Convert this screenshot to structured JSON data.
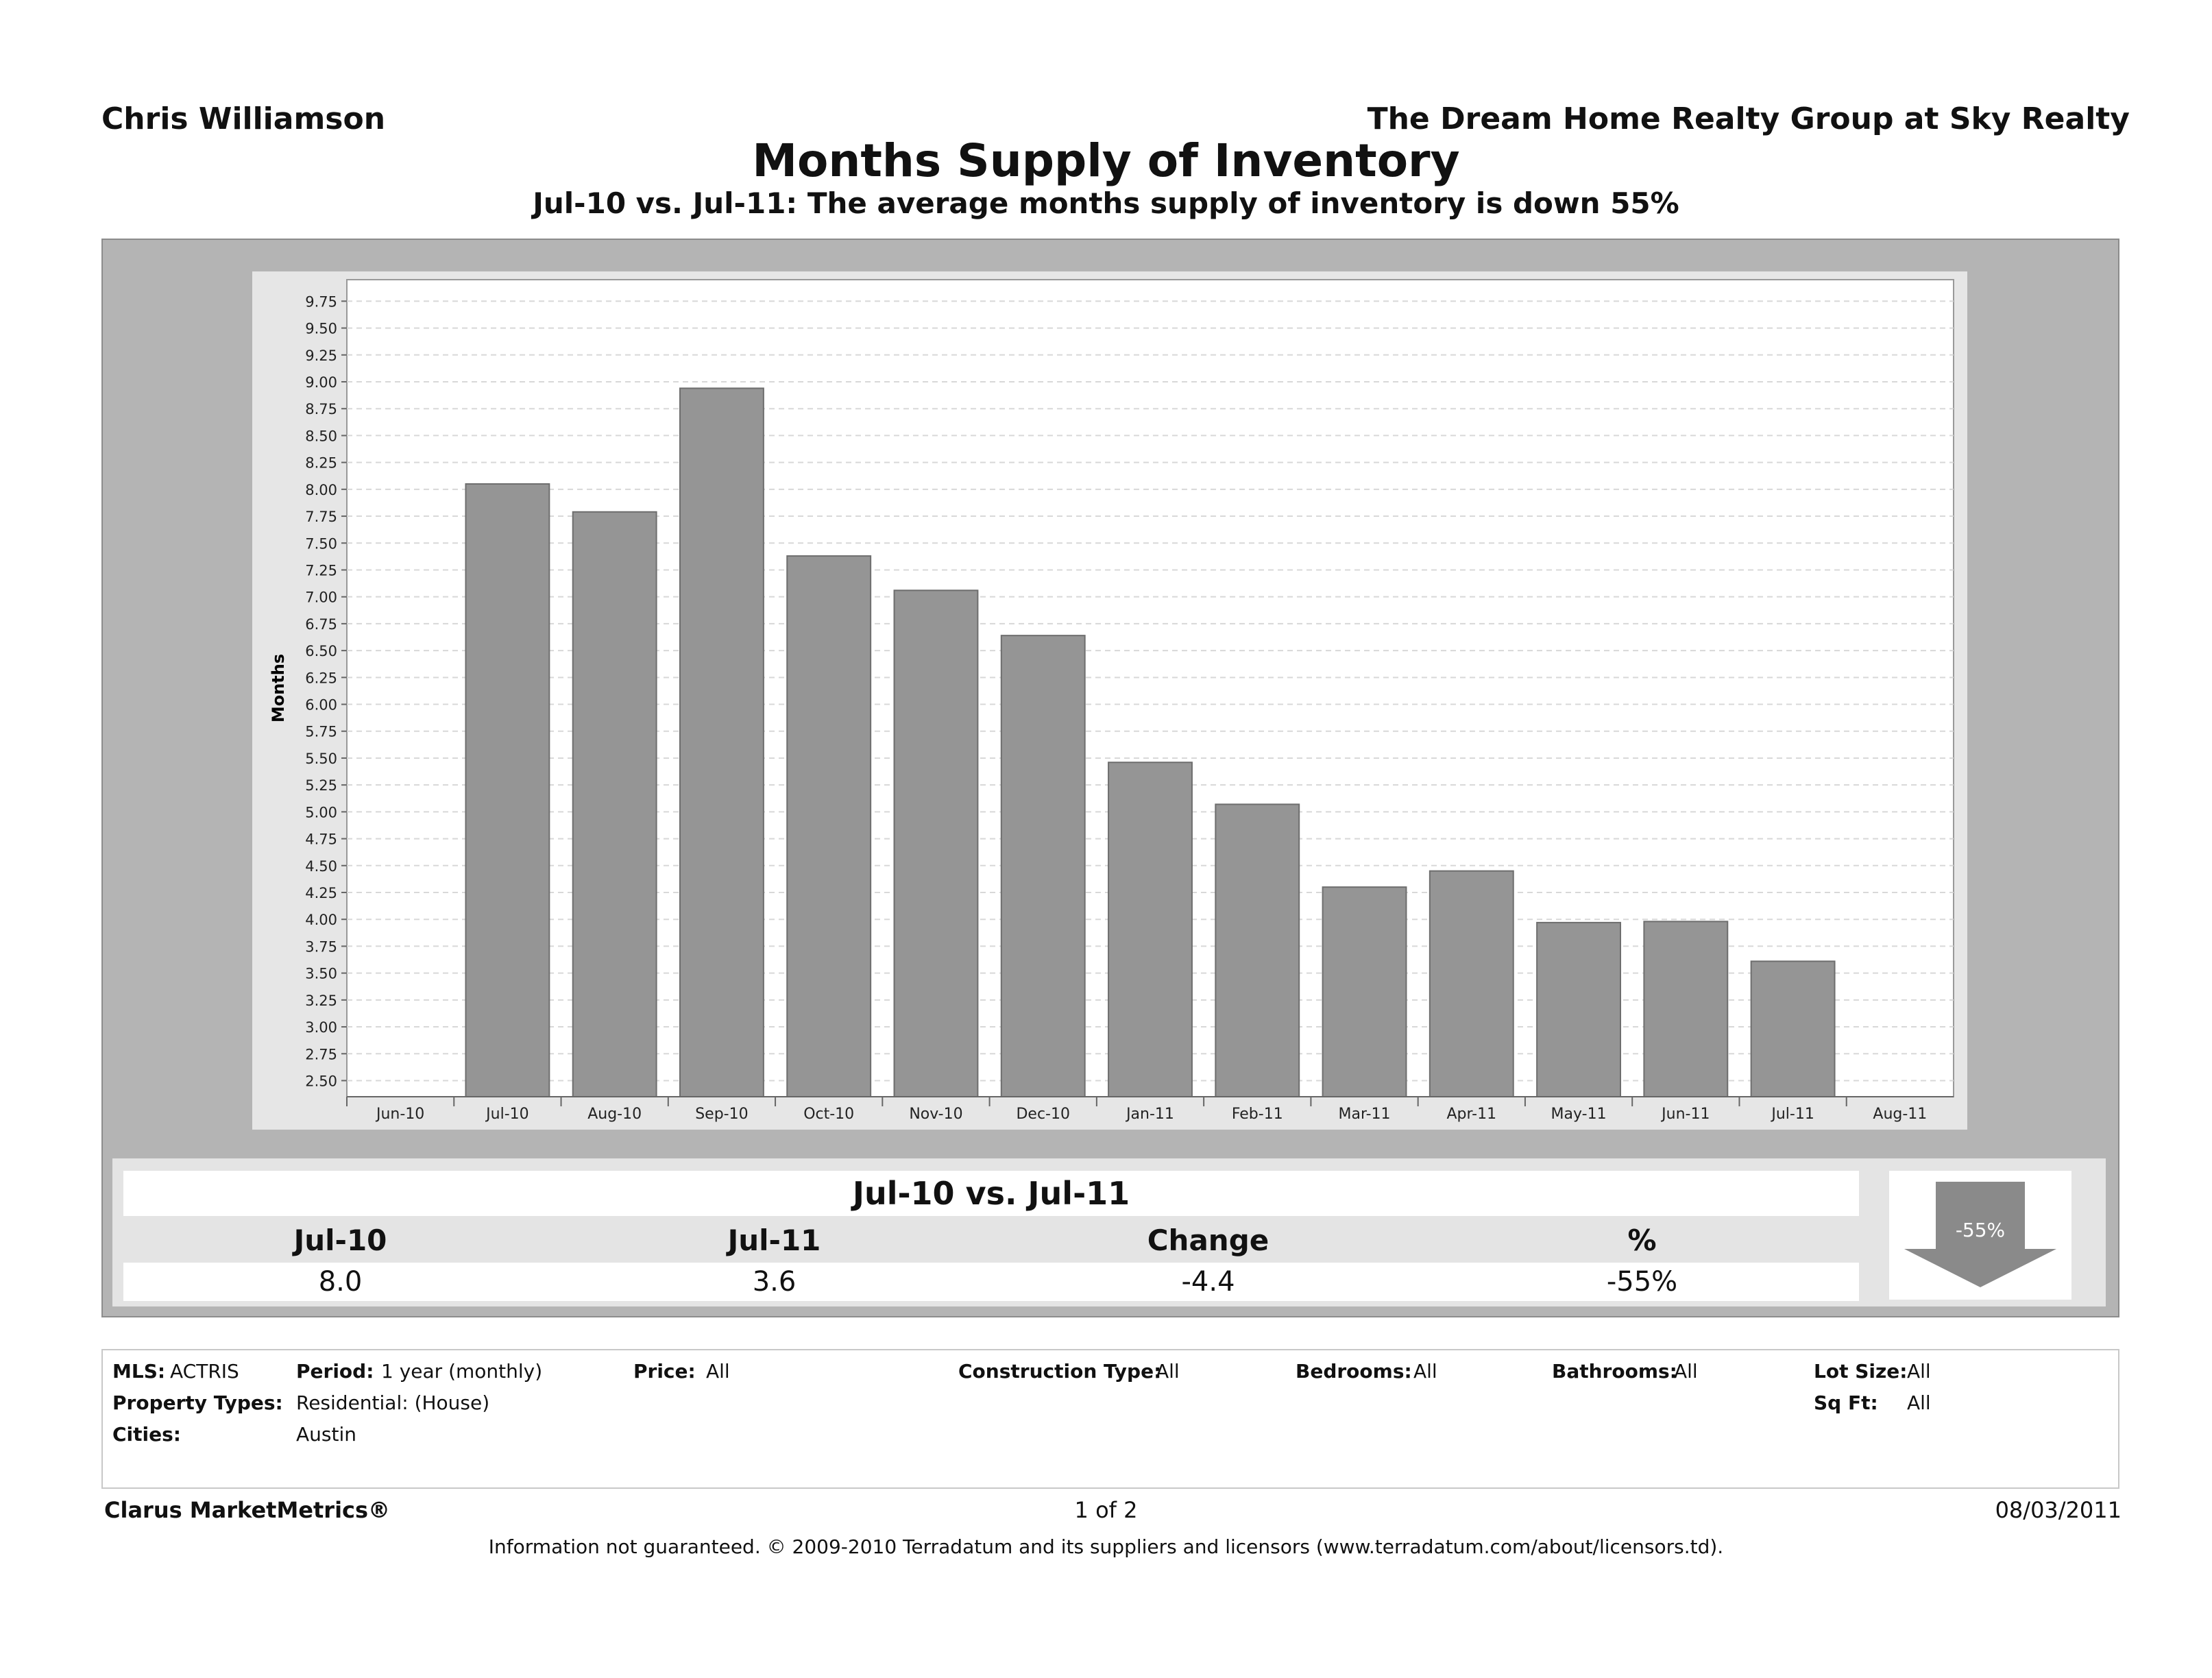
{
  "header": {
    "agent": "Chris Williamson",
    "company": "The Dream Home Realty Group at Sky Realty",
    "title": "Months Supply of Inventory",
    "subtitle": "Jul-10 vs. Jul-11:  The average months supply of inventory is down 55%"
  },
  "chart_data": {
    "type": "bar",
    "ylabel": "Months",
    "ylim": [
      2.35,
      9.95
    ],
    "yticks": [
      2.5,
      2.75,
      3.0,
      3.25,
      3.5,
      3.75,
      4.0,
      4.25,
      4.5,
      4.75,
      5.0,
      5.25,
      5.5,
      5.75,
      6.0,
      6.25,
      6.5,
      6.75,
      7.0,
      7.25,
      7.5,
      7.75,
      8.0,
      8.25,
      8.5,
      8.75,
      9.0,
      9.25,
      9.5,
      9.75
    ],
    "categories": [
      "Jun-10",
      "Jul-10",
      "Aug-10",
      "Sep-10",
      "Oct-10",
      "Nov-10",
      "Dec-10",
      "Jan-11",
      "Feb-11",
      "Mar-11",
      "Apr-11",
      "May-11",
      "Jun-11",
      "Jul-11",
      "Aug-11"
    ],
    "values": [
      null,
      8.05,
      7.79,
      8.94,
      7.38,
      7.06,
      6.64,
      5.46,
      5.07,
      4.3,
      4.45,
      3.97,
      3.98,
      3.61,
      null
    ],
    "grid": true,
    "bar_color": "#959595"
  },
  "summary": {
    "title": "Jul-10 vs. Jul-11",
    "headers": [
      "Jul-10",
      "Jul-11",
      "Change",
      "%"
    ],
    "values": [
      "8.0",
      "3.6",
      "-4.4",
      "-55%"
    ],
    "arrow_label": "-55%",
    "arrow_direction": "down"
  },
  "filters": {
    "mls_label": "MLS:",
    "mls_value": "ACTRIS",
    "period_label": "Period:",
    "period_value": "1 year (monthly)",
    "price_label": "Price:",
    "price_value": "All",
    "construction_label": "Construction Type:",
    "construction_value": "All",
    "bedrooms_label": "Bedrooms:",
    "bedrooms_value": "All",
    "bathrooms_label": "Bathrooms:",
    "bathrooms_value": "All",
    "lotsize_label": "Lot Size:",
    "lotsize_value": "All",
    "proptypes_label": "Property Types:",
    "proptypes_value": "Residential: (House)",
    "sqft_label": "Sq Ft:",
    "sqft_value": "All",
    "cities_label": "Cities:",
    "cities_value": "Austin"
  },
  "footer": {
    "brand": "Clarus MarketMetrics®",
    "pages": "1 of 2",
    "date": "08/03/2011",
    "disclaimer": "Information not guaranteed.  © 2009-2010 Terradatum and its suppliers and licensors (www.terradatum.com/about/licensors.td)."
  }
}
